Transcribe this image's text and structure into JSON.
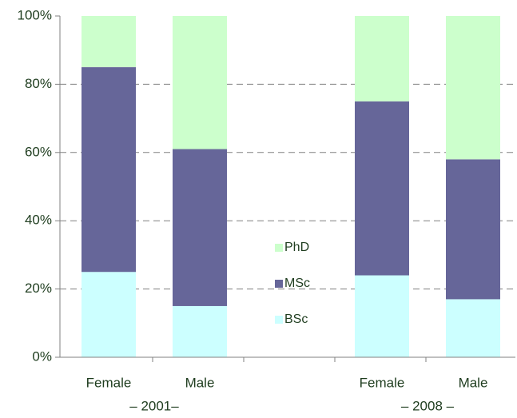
{
  "chart_data": {
    "type": "stacked_bar_percent",
    "categories": [
      "Female",
      "Male",
      null,
      "Female",
      "Male"
    ],
    "groups": [
      "– 2001–",
      "– 2008 –"
    ],
    "series": [
      {
        "name": "BSc",
        "color": "#ccffff",
        "values": [
          25,
          15,
          null,
          24,
          17
        ]
      },
      {
        "name": "MSc",
        "color": "#666699",
        "values": [
          60,
          46,
          null,
          51,
          41
        ]
      },
      {
        "name": "PhD",
        "color": "#ccffcc",
        "values": [
          15,
          39,
          null,
          25,
          42
        ]
      }
    ],
    "ylim": [
      0,
      100
    ],
    "yticks": [
      {
        "value": 0,
        "label": "0%"
      },
      {
        "value": 20,
        "label": "20%"
      },
      {
        "value": 40,
        "label": "40%"
      },
      {
        "value": 60,
        "label": "60%"
      },
      {
        "value": 80,
        "label": "80%"
      },
      {
        "value": 100,
        "label": "100%"
      }
    ],
    "grid": true,
    "legend": "center"
  }
}
